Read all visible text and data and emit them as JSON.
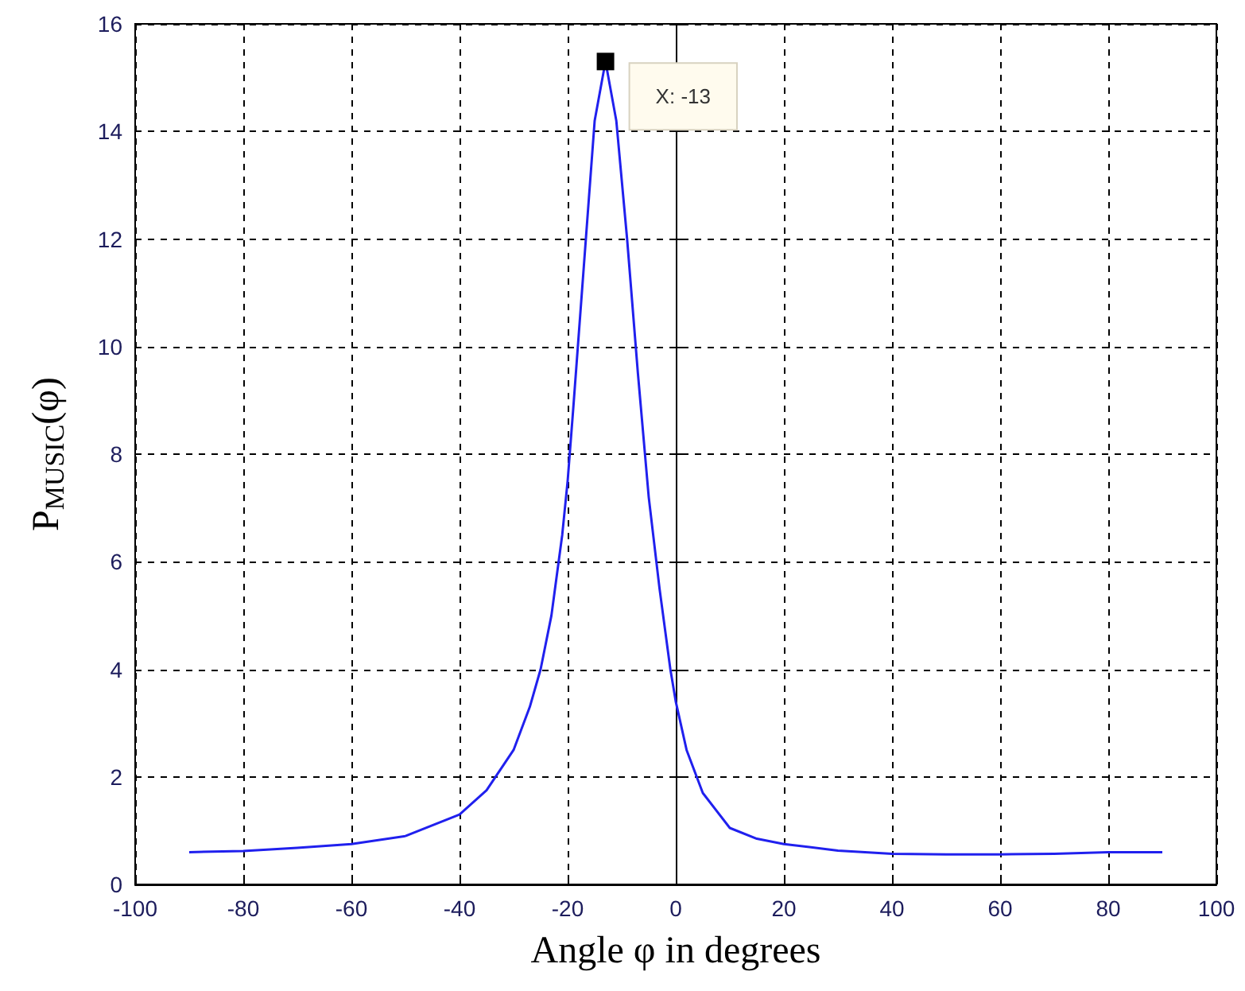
{
  "chart_data": {
    "type": "line",
    "xlabel": "Angle φ in degrees",
    "ylabel": "P$_{MUSIC}$(φ)",
    "x": [
      -90,
      -80,
      -70,
      -60,
      -50,
      -40,
      -35,
      -30,
      -27,
      -25,
      -23,
      -21,
      -20,
      -19,
      -17,
      -15,
      -13,
      -11,
      -9,
      -7,
      -5,
      -3,
      -1,
      0,
      2,
      5,
      10,
      15,
      20,
      30,
      40,
      50,
      60,
      70,
      80,
      90
    ],
    "series": [
      {
        "color": "#2020ee",
        "values": [
          0.6,
          0.62,
          0.68,
          0.75,
          0.9,
          1.3,
          1.75,
          2.5,
          3.3,
          4.0,
          5.0,
          6.5,
          7.5,
          8.8,
          11.5,
          14.2,
          15.3,
          14.2,
          12.0,
          9.5,
          7.2,
          5.5,
          4.0,
          3.4,
          2.5,
          1.7,
          1.05,
          0.85,
          0.75,
          0.63,
          0.57,
          0.56,
          0.56,
          0.57,
          0.6,
          0.6
        ]
      }
    ],
    "annotations": [
      {
        "text": "X: -13",
        "x": -13,
        "y": 15.3
      }
    ],
    "xlim": [
      -100,
      100
    ],
    "xticks": [
      -100,
      -80,
      -60,
      -40,
      -20,
      0,
      20,
      40,
      60,
      80,
      100
    ],
    "ylim": [
      0,
      16
    ],
    "yticks": [
      0,
      2,
      4,
      6,
      8,
      10,
      12,
      14,
      16
    ],
    "grid": true,
    "marker": "none",
    "line_style": "solid"
  }
}
